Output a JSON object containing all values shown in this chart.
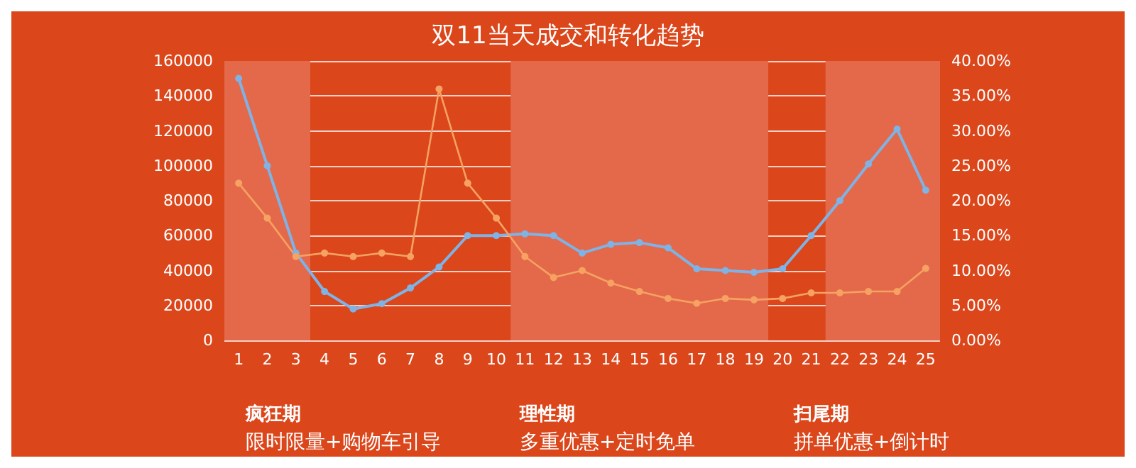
{
  "chart_data": {
    "type": "line",
    "title": "双11当天成交和转化趋势",
    "x": [
      1,
      2,
      3,
      4,
      5,
      6,
      7,
      8,
      9,
      10,
      11,
      12,
      13,
      14,
      15,
      16,
      17,
      18,
      19,
      20,
      21,
      22,
      23,
      24,
      25
    ],
    "xlim": [
      0.5,
      25.5
    ],
    "xticks": [
      1,
      2,
      3,
      4,
      5,
      6,
      7,
      8,
      9,
      10,
      11,
      12,
      13,
      14,
      15,
      16,
      17,
      18,
      19,
      20,
      21,
      22,
      23,
      24,
      25
    ],
    "ylim": [
      0,
      160000
    ],
    "yticks": [
      0,
      20000,
      40000,
      60000,
      80000,
      100000,
      120000,
      140000,
      160000
    ],
    "y2lim": [
      0,
      40
    ],
    "y2ticks": [
      {
        "value": 0,
        "label": "0.00%"
      },
      {
        "value": 5,
        "label": "5.00%"
      },
      {
        "value": 10,
        "label": "10.00%"
      },
      {
        "value": 15,
        "label": "15.00%"
      },
      {
        "value": 20,
        "label": "20.00%"
      },
      {
        "value": 25,
        "label": "25.00%"
      },
      {
        "value": 30,
        "label": "30.00%"
      },
      {
        "value": 35,
        "label": "35.00%"
      },
      {
        "value": 40,
        "label": "40.00%"
      }
    ],
    "series": [
      {
        "color": "#7fb2e5",
        "values": [
          150000,
          100000,
          50000,
          28000,
          18000,
          21000,
          30000,
          42000,
          60000,
          60000,
          61000,
          60000,
          50000,
          55000,
          56000,
          53000,
          41000,
          40000,
          39000,
          41000,
          60000,
          80000,
          101000,
          121000,
          86000
        ]
      },
      {
        "color": "#f5a262",
        "axis": "y2",
        "values": [
          22.5,
          17.5,
          12,
          12.5,
          12,
          12.5,
          12,
          36,
          22.5,
          17.5,
          12,
          9,
          10,
          8.2,
          7,
          6,
          5.3,
          6,
          5.8,
          6,
          6.8,
          6.8,
          7,
          7,
          10.3
        ]
      }
    ],
    "bands": [
      {
        "axis": "x",
        "from": 0.5,
        "to": 3.5,
        "color": "#e4694a"
      },
      {
        "axis": "x",
        "from": 10.5,
        "to": 19.5,
        "color": "#e4694a"
      },
      {
        "axis": "x",
        "from": 21.5,
        "to": 25.5,
        "color": "#e4694a"
      }
    ],
    "annotations": [
      "疯狂期",
      "限时限量+购物车引导",
      "理性期",
      "多重优惠+定时免单",
      "扫尾期",
      "拼单优惠+倒计时"
    ],
    "grid": "y",
    "marker": "circle",
    "line_style": "solid"
  }
}
